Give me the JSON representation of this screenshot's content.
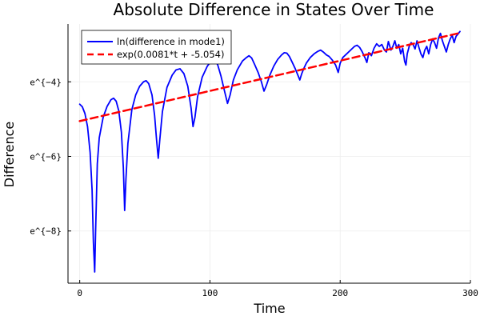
{
  "chart_data": {
    "type": "line",
    "title": "Absolute Difference in States Over Time",
    "xlabel": "Time",
    "ylabel": "Difference",
    "xlim": [
      -9,
      300
    ],
    "ylim": [
      -9.4,
      -2.45
    ],
    "x_ticks": [
      0,
      100,
      200,
      300
    ],
    "y_ticks": [
      {
        "value": -8,
        "label": "e^{−8}"
      },
      {
        "value": -6,
        "label": "e^{−6}"
      },
      {
        "value": -4,
        "label": "e^{−4}"
      }
    ],
    "grid": true,
    "legend_position": "top-left",
    "series": [
      {
        "name": "ln(difference in mode1)",
        "color": "#0000ff",
        "style": "solid",
        "points": [
          [
            0,
            -4.6
          ],
          [
            2,
            -4.67
          ],
          [
            4,
            -4.85
          ],
          [
            6,
            -5.2
          ],
          [
            8,
            -5.9
          ],
          [
            9.5,
            -6.9
          ],
          [
            10.5,
            -8.3
          ],
          [
            11.5,
            -9.1
          ],
          [
            12.2,
            -8.0
          ],
          [
            13.5,
            -6.2
          ],
          [
            15,
            -5.5
          ],
          [
            18,
            -4.95
          ],
          [
            21,
            -4.66
          ],
          [
            24,
            -4.48
          ],
          [
            26,
            -4.44
          ],
          [
            28,
            -4.52
          ],
          [
            30,
            -4.78
          ],
          [
            32,
            -5.35
          ],
          [
            33.5,
            -6.3
          ],
          [
            34.5,
            -7.45
          ],
          [
            35.5,
            -6.6
          ],
          [
            37,
            -5.65
          ],
          [
            40,
            -4.75
          ],
          [
            43,
            -4.35
          ],
          [
            46,
            -4.12
          ],
          [
            49,
            -4.0
          ],
          [
            51,
            -3.97
          ],
          [
            53,
            -4.05
          ],
          [
            55.5,
            -4.35
          ],
          [
            57.5,
            -4.9
          ],
          [
            59,
            -5.55
          ],
          [
            60.3,
            -6.05
          ],
          [
            61.5,
            -5.55
          ],
          [
            63.5,
            -4.8
          ],
          [
            67,
            -4.15
          ],
          [
            71,
            -3.82
          ],
          [
            74,
            -3.68
          ],
          [
            77,
            -3.65
          ],
          [
            80,
            -3.78
          ],
          [
            83,
            -4.12
          ],
          [
            85.5,
            -4.7
          ],
          [
            87,
            -5.2
          ],
          [
            88.5,
            -4.95
          ],
          [
            90.5,
            -4.4
          ],
          [
            94,
            -3.88
          ],
          [
            98,
            -3.58
          ],
          [
            101,
            -3.44
          ],
          [
            104,
            -3.42
          ],
          [
            106,
            -3.55
          ],
          [
            108.5,
            -3.85
          ],
          [
            111,
            -4.22
          ],
          [
            113.5,
            -4.58
          ],
          [
            115.5,
            -4.35
          ],
          [
            118,
            -3.95
          ],
          [
            121,
            -3.68
          ],
          [
            125,
            -3.44
          ],
          [
            128,
            -3.35
          ],
          [
            130,
            -3.3
          ],
          [
            132,
            -3.36
          ],
          [
            134.5,
            -3.55
          ],
          [
            137,
            -3.75
          ],
          [
            139.5,
            -4.0
          ],
          [
            141.5,
            -4.25
          ],
          [
            143.5,
            -4.08
          ],
          [
            146,
            -3.82
          ],
          [
            149,
            -3.58
          ],
          [
            152,
            -3.4
          ],
          [
            155,
            -3.28
          ],
          [
            157,
            -3.22
          ],
          [
            159,
            -3.23
          ],
          [
            161,
            -3.32
          ],
          [
            163.5,
            -3.5
          ],
          [
            165.5,
            -3.65
          ],
          [
            167.5,
            -3.82
          ],
          [
            169,
            -3.95
          ],
          [
            170.5,
            -3.78
          ],
          [
            172,
            -3.65
          ],
          [
            174,
            -3.5
          ],
          [
            177,
            -3.35
          ],
          [
            180,
            -3.25
          ],
          [
            183,
            -3.18
          ],
          [
            185,
            -3.15
          ],
          [
            187,
            -3.2
          ],
          [
            189.5,
            -3.28
          ],
          [
            191.5,
            -3.32
          ],
          [
            194,
            -3.42
          ],
          [
            196.5,
            -3.55
          ],
          [
            198.5,
            -3.75
          ],
          [
            200,
            -3.5
          ],
          [
            202,
            -3.35
          ],
          [
            205,
            -3.25
          ],
          [
            208,
            -3.15
          ],
          [
            211,
            -3.05
          ],
          [
            213,
            -3.02
          ],
          [
            215,
            -3.08
          ],
          [
            217,
            -3.2
          ],
          [
            219,
            -3.35
          ],
          [
            220.5,
            -3.48
          ],
          [
            222,
            -3.22
          ],
          [
            224,
            -3.3
          ],
          [
            226,
            -3.1
          ],
          [
            228,
            -2.98
          ],
          [
            230,
            -3.05
          ],
          [
            232,
            -3.0
          ],
          [
            234,
            -3.15
          ],
          [
            235.5,
            -3.2
          ],
          [
            237,
            -2.92
          ],
          [
            239,
            -3.15
          ],
          [
            240.5,
            -3.05
          ],
          [
            242,
            -2.9
          ],
          [
            243.5,
            -3.1
          ],
          [
            245,
            -3.0
          ],
          [
            246.5,
            -3.25
          ],
          [
            248,
            -3.1
          ],
          [
            249.5,
            -3.45
          ],
          [
            250.5,
            -3.55
          ],
          [
            251.5,
            -3.25
          ],
          [
            253,
            -3.05
          ],
          [
            254.5,
            -2.95
          ],
          [
            256,
            -3.0
          ],
          [
            257.5,
            -3.12
          ],
          [
            259,
            -2.9
          ],
          [
            260.5,
            -3.08
          ],
          [
            262,
            -3.25
          ],
          [
            263.5,
            -3.35
          ],
          [
            265,
            -3.15
          ],
          [
            266.5,
            -3.05
          ],
          [
            268,
            -3.25
          ],
          [
            269.5,
            -3.0
          ],
          [
            271,
            -2.85
          ],
          [
            272.5,
            -2.95
          ],
          [
            274,
            -3.1
          ],
          [
            275.5,
            -2.82
          ],
          [
            277,
            -2.7
          ],
          [
            278.5,
            -2.9
          ],
          [
            280,
            -3.05
          ],
          [
            281.5,
            -3.2
          ],
          [
            283,
            -3.0
          ],
          [
            284.5,
            -2.85
          ],
          [
            286,
            -2.75
          ],
          [
            287.5,
            -2.95
          ],
          [
            289,
            -2.78
          ],
          [
            290.5,
            -2.72
          ],
          [
            292,
            -2.65
          ]
        ]
      },
      {
        "name": "exp(0.0081*t + -5.054)",
        "color": "#ff0000",
        "style": "dashed",
        "points": [
          [
            0,
            -5.054
          ],
          [
            292,
            -2.6888
          ]
        ]
      }
    ]
  }
}
